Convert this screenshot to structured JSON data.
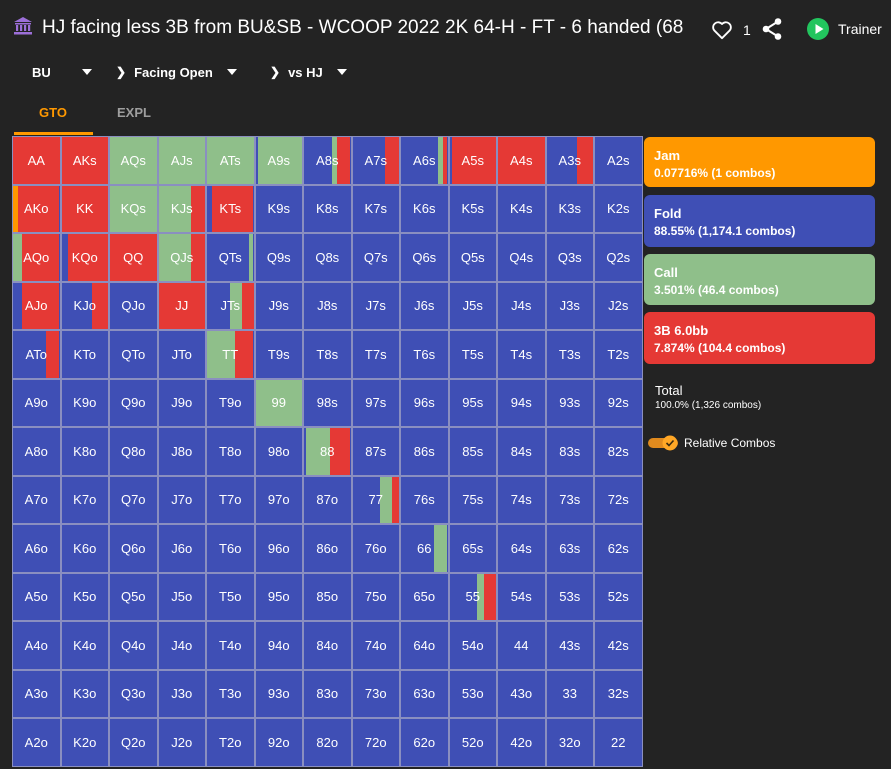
{
  "header": {
    "title": "HJ facing less 3B from BU&SB - WCOOP 2022 2K 64-H - FT - 6 handed (68",
    "like_count": "1",
    "trainer_label": "Trainer"
  },
  "breadcrumb": [
    {
      "label": "BU"
    },
    {
      "label": "Facing Open"
    },
    {
      "label": "vs HJ"
    }
  ],
  "tabs": [
    {
      "label": "GTO",
      "active": true
    },
    {
      "label": "EXPL",
      "active": false
    }
  ],
  "colors": {
    "jam": "#ff9800",
    "fold": "#3f4fb5",
    "call": "#8fbf8a",
    "threebet": "#e53935",
    "accent": "#ff9800",
    "trainer_green": "#22c55e"
  },
  "legend": [
    {
      "key": "jam",
      "name": "Jam",
      "value": "0.07716% (1 combos)"
    },
    {
      "key": "fold",
      "name": "Fold",
      "value": "88.55% (1,174.1 combos)"
    },
    {
      "key": "call",
      "name": "Call",
      "value": "3.501% (46.4 combos)"
    },
    {
      "key": "threebet",
      "name": "3B 6.0bb",
      "value": "7.874% (104.4 combos)"
    }
  ],
  "total": {
    "label": "Total",
    "value": "100.0% (1,326 combos)"
  },
  "relative_combos": {
    "label": "Relative Combos",
    "enabled": true
  },
  "icons": {
    "title": "bank-icon",
    "like": "heart-outline-icon",
    "share": "share-icon",
    "trainer": "play-circle-icon"
  },
  "grid": [
    [
      "AA",
      "AKs",
      "AQs",
      "AJs",
      "ATs",
      "A9s",
      "A8s",
      "A7s",
      "A6s",
      "A5s",
      "A4s",
      "A3s",
      "A2s"
    ],
    [
      "AKo",
      "KK",
      "KQs",
      "KJs",
      "KTs",
      "K9s",
      "K8s",
      "K7s",
      "K6s",
      "K5s",
      "K4s",
      "K3s",
      "K2s"
    ],
    [
      "AQo",
      "KQo",
      "QQ",
      "QJs",
      "QTs",
      "Q9s",
      "Q8s",
      "Q7s",
      "Q6s",
      "Q5s",
      "Q4s",
      "Q3s",
      "Q2s"
    ],
    [
      "AJo",
      "KJo",
      "QJo",
      "JJ",
      "JTs",
      "J9s",
      "J8s",
      "J7s",
      "J6s",
      "J5s",
      "J4s",
      "J3s",
      "J2s"
    ],
    [
      "ATo",
      "KTo",
      "QTo",
      "JTo",
      "TT",
      "T9s",
      "T8s",
      "T7s",
      "T6s",
      "T5s",
      "T4s",
      "T3s",
      "T2s"
    ],
    [
      "A9o",
      "K9o",
      "Q9o",
      "J9o",
      "T9o",
      "99",
      "98s",
      "97s",
      "96s",
      "95s",
      "94s",
      "93s",
      "92s"
    ],
    [
      "A8o",
      "K8o",
      "Q8o",
      "J8o",
      "T8o",
      "98o",
      "88",
      "87s",
      "86s",
      "85s",
      "84s",
      "83s",
      "82s"
    ],
    [
      "A7o",
      "K7o",
      "Q7o",
      "J7o",
      "T7o",
      "97o",
      "87o",
      "77",
      "76s",
      "75s",
      "74s",
      "73s",
      "72s"
    ],
    [
      "A6o",
      "K6o",
      "Q6o",
      "J6o",
      "T6o",
      "96o",
      "86o",
      "76o",
      "66",
      "65s",
      "64s",
      "63s",
      "62s"
    ],
    [
      "A5o",
      "K5o",
      "Q5o",
      "J5o",
      "T5o",
      "95o",
      "85o",
      "75o",
      "65o",
      "55",
      "54s",
      "53s",
      "52s"
    ],
    [
      "A4o",
      "K4o",
      "Q4o",
      "J4o",
      "T4o",
      "94o",
      "84o",
      "74o",
      "64o",
      "54o",
      "44",
      "43s",
      "42s"
    ],
    [
      "A3o",
      "K3o",
      "Q3o",
      "J3o",
      "T3o",
      "93o",
      "83o",
      "73o",
      "63o",
      "53o",
      "43o",
      "33",
      "32s"
    ],
    [
      "A2o",
      "K2o",
      "Q2o",
      "J2o",
      "T2o",
      "92o",
      "82o",
      "72o",
      "62o",
      "52o",
      "42o",
      "32o",
      "22"
    ]
  ],
  "strategy": {
    "AA": [
      [
        "threebet",
        1
      ]
    ],
    "AKs": [
      [
        "threebet",
        1
      ]
    ],
    "AQs": [
      [
        "call",
        1
      ]
    ],
    "AJs": [
      [
        "call",
        1
      ]
    ],
    "ATs": [
      [
        "call",
        1
      ]
    ],
    "A9s": [
      [
        "fold",
        0.05
      ],
      [
        "call",
        0.95
      ]
    ],
    "A8s": [
      [
        "fold",
        0.6
      ],
      [
        "call",
        0.1
      ],
      [
        "threebet",
        0.3
      ]
    ],
    "A7s": [
      [
        "fold",
        0.7
      ],
      [
        "threebet",
        0.3
      ]
    ],
    "A6s": [
      [
        "fold",
        0.8
      ],
      [
        "call",
        0.1
      ],
      [
        "threebet",
        0.1
      ]
    ],
    "A5s": [
      [
        "fold",
        0.05
      ],
      [
        "threebet",
        0.95
      ]
    ],
    "A4s": [
      [
        "threebet",
        1
      ]
    ],
    "A3s": [
      [
        "fold",
        0.65
      ],
      [
        "threebet",
        0.35
      ]
    ],
    "A2s": [
      [
        "fold",
        1
      ]
    ],
    "AKo": [
      [
        "jam",
        0.1
      ],
      [
        "threebet",
        0.9
      ]
    ],
    "KK": [
      [
        "threebet",
        1
      ]
    ],
    "KQs": [
      [
        "call",
        1
      ]
    ],
    "KJs": [
      [
        "call",
        0.7
      ],
      [
        "threebet",
        0.3
      ]
    ],
    "KTs": [
      [
        "fold",
        0.1
      ],
      [
        "threebet",
        0.9
      ]
    ],
    "AQo": [
      [
        "call",
        0.2
      ],
      [
        "threebet",
        0.8
      ]
    ],
    "KQo": [
      [
        "fold",
        0.15
      ],
      [
        "threebet",
        0.85
      ]
    ],
    "QQ": [
      [
        "threebet",
        1
      ]
    ],
    "QJs": [
      [
        "call",
        0.7
      ],
      [
        "threebet",
        0.3
      ]
    ],
    "QTs": [
      [
        "fold",
        0.9
      ],
      [
        "call",
        0.1
      ]
    ],
    "AJo": [
      [
        "fold",
        0.2
      ],
      [
        "threebet",
        0.8
      ]
    ],
    "KJo": [
      [
        "fold",
        0.65
      ],
      [
        "threebet",
        0.35
      ]
    ],
    "JJ": [
      [
        "threebet",
        1
      ]
    ],
    "JTs": [
      [
        "fold",
        0.5
      ],
      [
        "call",
        0.25
      ],
      [
        "threebet",
        0.25
      ]
    ],
    "ATo": [
      [
        "fold",
        0.7
      ],
      [
        "threebet",
        0.3
      ]
    ],
    "TT": [
      [
        "call",
        0.6
      ],
      [
        "threebet",
        0.4
      ]
    ],
    "99": [
      [
        "call",
        1
      ]
    ],
    "88": [
      [
        "fold",
        0.05
      ],
      [
        "call",
        0.5
      ],
      [
        "threebet",
        0.45
      ]
    ],
    "77": [
      [
        "fold",
        0.6
      ],
      [
        "call",
        0.25
      ],
      [
        "threebet",
        0.15
      ]
    ],
    "66": [
      [
        "fold",
        0.7
      ],
      [
        "call",
        0.3
      ]
    ],
    "55": [
      [
        "fold",
        0.6
      ],
      [
        "call",
        0.15
      ],
      [
        "threebet",
        0.25
      ]
    ]
  }
}
